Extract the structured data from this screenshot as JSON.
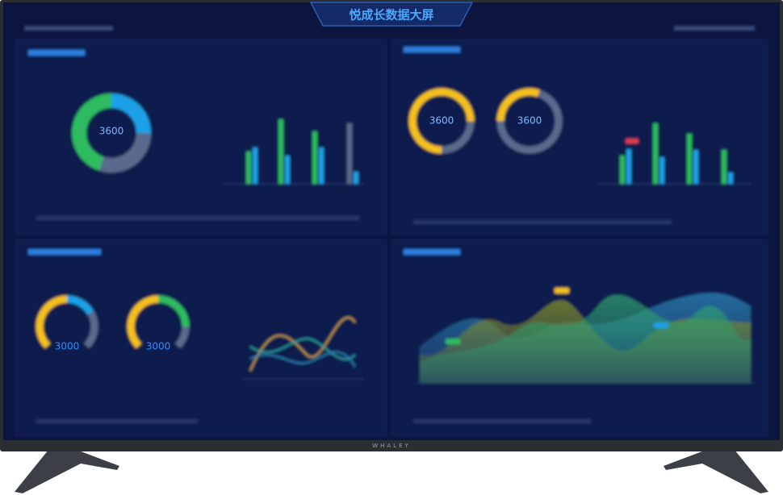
{
  "header": {
    "title": "悦成长数据大屏"
  },
  "panels": [
    {
      "donuts": [
        "3600"
      ]
    },
    {
      "donuts": [
        "3600",
        "3600"
      ]
    },
    {
      "gauges": [
        "3000",
        "3000"
      ]
    },
    {}
  ],
  "tv": {
    "brand": "WHALEY"
  }
}
